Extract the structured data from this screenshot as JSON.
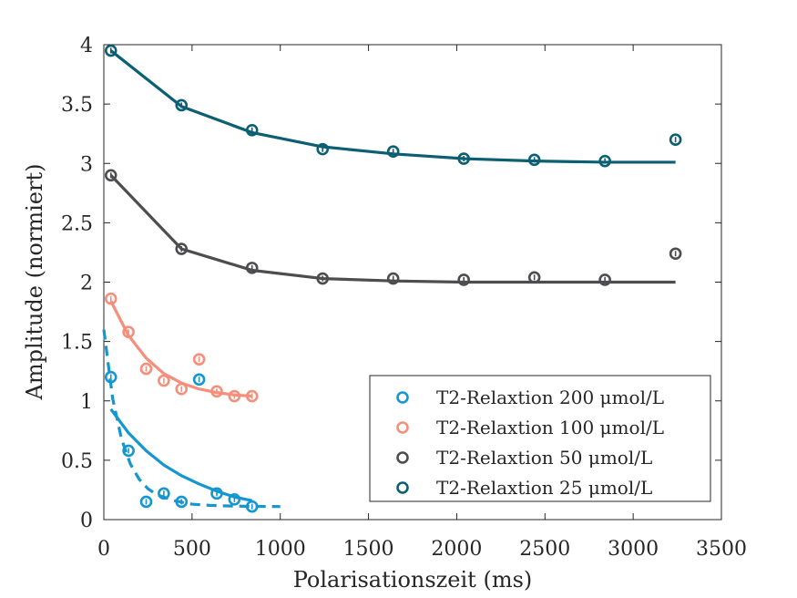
{
  "chart_data": {
    "type": "scatter",
    "xlabel": "Polarisationszeit (ms)",
    "ylabel": "Amplitude (normiert)",
    "xlim": [
      0,
      3500
    ],
    "ylim": [
      0,
      4
    ],
    "xticks": [
      0,
      500,
      1000,
      1500,
      2000,
      2500,
      3000,
      3500
    ],
    "xtick_labels": [
      "0",
      "500",
      "1000",
      "1500",
      "2000",
      "2500",
      "3000",
      "3500"
    ],
    "yticks": [
      0,
      0.5,
      1,
      1.5,
      2,
      2.5,
      3,
      3.5,
      4
    ],
    "ytick_labels": [
      "0",
      "0.5",
      "1",
      "1.5",
      "2",
      "2.5",
      "3",
      "3.5",
      "4"
    ],
    "grid": false,
    "legend_position": "bottom-right",
    "series": [
      {
        "name": "T2-Relaxtion 200 μmol/L",
        "color": "#1496d0",
        "x": [
          40,
          140,
          240,
          340,
          440,
          540,
          640,
          740,
          840
        ],
        "y": [
          1.2,
          0.58,
          0.15,
          0.22,
          0.15,
          1.18,
          0.22,
          0.17,
          0.11
        ],
        "fits": [
          {
            "style": "solid",
            "x": [
              40,
              140,
              240,
              340,
              440,
              540,
              640,
              740,
              840
            ],
            "y": [
              0.93,
              0.73,
              0.58,
              0.46,
              0.37,
              0.3,
              0.24,
              0.19,
              0.16
            ]
          },
          {
            "style": "dashed",
            "x": [
              0,
              50,
              100,
              150,
              200,
              250,
              300,
              400,
              500,
              600,
              700,
              800,
              1000
            ],
            "y": [
              1.6,
              1.02,
              0.68,
              0.47,
              0.34,
              0.26,
              0.21,
              0.16,
              0.13,
              0.12,
              0.115,
              0.112,
              0.11
            ]
          }
        ]
      },
      {
        "name": "T2-Relaxtion 100 μmol/L",
        "color": "#f58f7c",
        "x": [
          40,
          140,
          240,
          340,
          440,
          540,
          640,
          740,
          840
        ],
        "y": [
          1.86,
          1.58,
          1.27,
          1.17,
          1.1,
          1.35,
          1.08,
          1.04,
          1.04
        ],
        "fits": [
          {
            "style": "solid",
            "x": [
              40,
              140,
              240,
              340,
              440,
              540,
              640,
              740,
              840
            ],
            "y": [
              1.84,
              1.55,
              1.36,
              1.23,
              1.15,
              1.1,
              1.07,
              1.05,
              1.04
            ]
          }
        ]
      },
      {
        "name": "T2-Relaxtion 50 μmol/L",
        "color": "#4d4d4f",
        "x": [
          40,
          440,
          840,
          1240,
          1640,
          2040,
          2440,
          2840,
          3240
        ],
        "y": [
          2.9,
          2.28,
          2.12,
          2.03,
          2.03,
          2.02,
          2.04,
          2.02,
          2.24
        ],
        "fits": [
          {
            "style": "solid",
            "x": [
              40,
              440,
              840,
              1240,
              1640,
              2040,
              2440,
              2840,
              3240
            ],
            "y": [
              2.9,
              2.28,
              2.1,
              2.03,
              2.01,
              2.0,
              2.0,
              2.0,
              2.0
            ]
          }
        ]
      },
      {
        "name": "T2-Relaxtion 25 μmol/L",
        "color": "#0c5f73",
        "x": [
          40,
          440,
          840,
          1240,
          1640,
          2040,
          2440,
          2840,
          3240
        ],
        "y": [
          3.95,
          3.49,
          3.28,
          3.12,
          3.1,
          3.04,
          3.03,
          3.02,
          3.2
        ],
        "fits": [
          {
            "style": "solid",
            "x": [
              40,
              440,
              840,
              1240,
              1640,
              2040,
              2440,
              2840,
              3240
            ],
            "y": [
              3.95,
              3.48,
              3.26,
              3.14,
              3.08,
              3.04,
              3.02,
              3.01,
              3.01
            ]
          }
        ]
      }
    ]
  }
}
